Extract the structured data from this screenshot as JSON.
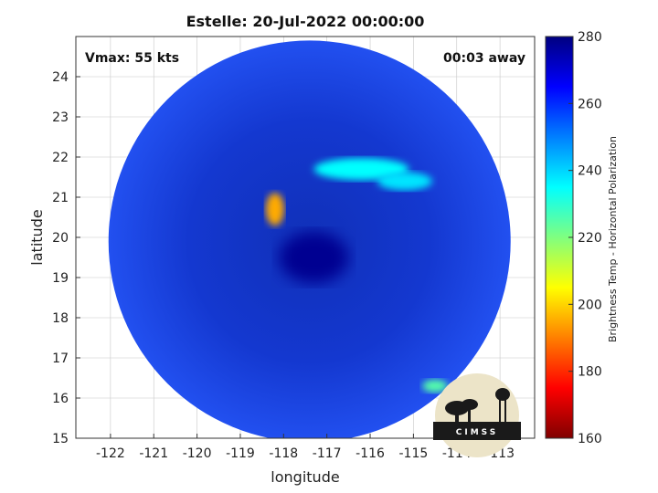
{
  "chart_data": {
    "type": "heatmap",
    "title": "Estelle: 20-Jul-2022 00:00:00",
    "xlabel": "longitude",
    "ylabel": "latitude",
    "xlim": [
      -122.8,
      -112.2
    ],
    "ylim": [
      15,
      25
    ],
    "x_ticks": [
      -122,
      -121,
      -120,
      -119,
      -118,
      -117,
      -116,
      -115,
      -114,
      -113
    ],
    "y_ticks": [
      15,
      16,
      17,
      18,
      19,
      20,
      21,
      22,
      23,
      24
    ],
    "grid": true,
    "annotations": {
      "vmax": "Vmax: 55 kts",
      "time_offset": "00:03 away"
    },
    "colorbar": {
      "label": "Brightness Temp - Horizontal Polarization",
      "range": [
        160,
        280
      ],
      "ticks": [
        160,
        180,
        200,
        220,
        240,
        260,
        280
      ],
      "colormap": "jet"
    },
    "swath": {
      "center_lon": -117.4,
      "center_lat": 19.9,
      "radius_deg_lat": 5.0
    },
    "features": [
      {
        "name": "eye",
        "lon": -117.3,
        "lat": 19.5,
        "value": 278
      },
      {
        "name": "rainband-west",
        "lon": -118.2,
        "lat": 20.7,
        "value": 195
      },
      {
        "name": "rainband-north",
        "lon": -116.2,
        "lat": 21.7,
        "value": 235
      },
      {
        "name": "rainband-ne",
        "lon": -115.2,
        "lat": 21.4,
        "value": 238
      },
      {
        "name": "cell-south",
        "lon": -114.5,
        "lat": 16.3,
        "value": 225
      }
    ]
  },
  "logo": {
    "text": "CIMSS"
  },
  "colors": {
    "background_low": "#0000bf",
    "field": "#1a3fe0",
    "grid": "#c8c8c8"
  }
}
